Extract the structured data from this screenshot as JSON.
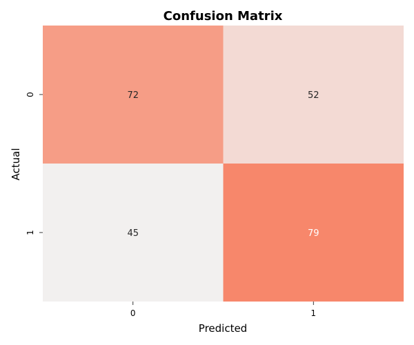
{
  "chart_data": {
    "type": "heatmap",
    "title": "Confusion Matrix",
    "xlabel": "Predicted",
    "ylabel": "Actual",
    "x_categories": [
      "0",
      "1"
    ],
    "y_categories": [
      "0",
      "1"
    ],
    "values": [
      [
        72,
        52
      ],
      [
        45,
        79
      ]
    ],
    "colorbar": false,
    "colormap": {
      "low": "#f2f0ef",
      "high": "#f7876b"
    },
    "label_colors": {
      "light": "#ffffff",
      "dark": "#262626"
    }
  }
}
